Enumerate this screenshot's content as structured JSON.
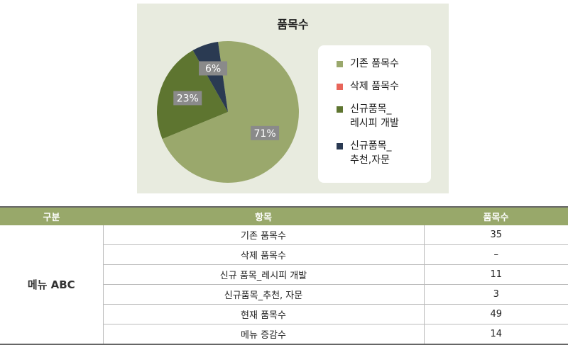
{
  "chart_data": {
    "type": "pie",
    "title": "품목수",
    "categories": [
      "기존 품목수",
      "삭제 품목수",
      "신규품목_\n레시피 개발",
      "신규품목_\n추천,자문"
    ],
    "values": [
      71,
      0,
      23,
      6
    ],
    "value_labels": [
      "71%",
      null,
      "23%",
      "6%"
    ],
    "colors": [
      "#9aa86c",
      "#e8655a",
      "#5e7530",
      "#2a3a52"
    ]
  },
  "table": {
    "header": [
      "구분",
      "항목",
      "품목수"
    ],
    "group": "메뉴 ABC",
    "rows": [
      [
        "기존 품목수",
        "35"
      ],
      [
        "삭제 품목수",
        "–"
      ],
      [
        "신규 품목_레시피 개발",
        "11"
      ],
      [
        "신규품목_추천, 자문",
        "3"
      ],
      [
        "현재 품목수",
        "49"
      ],
      [
        "메뉴 증감수",
        "14"
      ]
    ]
  }
}
